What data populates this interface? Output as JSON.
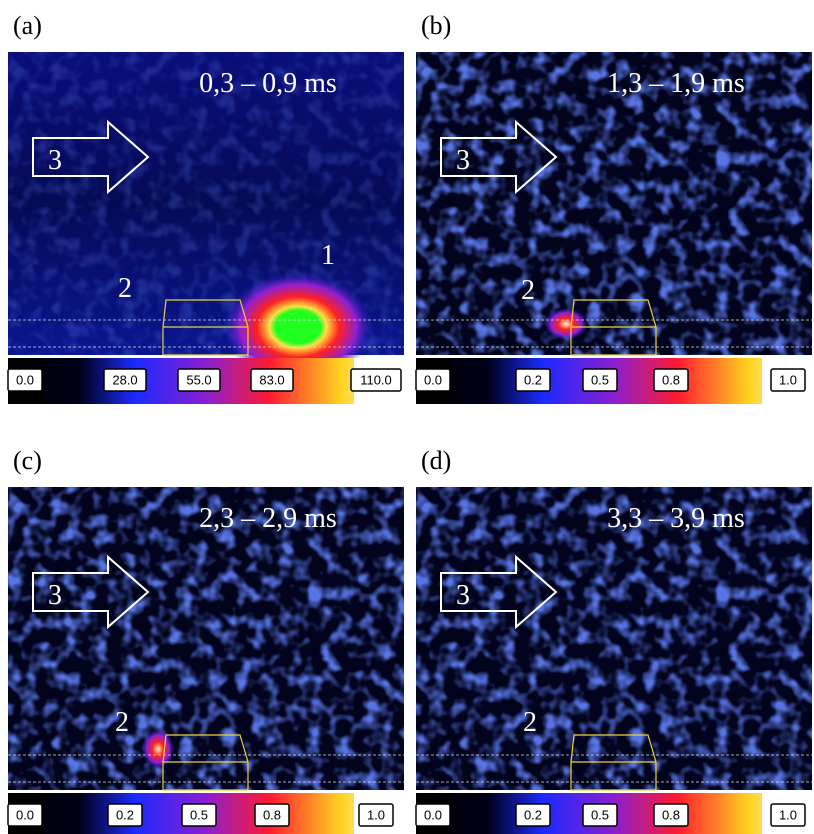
{
  "panels": [
    {
      "label": "(a)",
      "time": "0,3 – 0,9 ms",
      "arrow": "3",
      "marks": [
        "2",
        "1"
      ],
      "colorbar": [
        "0.0",
        "28.0",
        "55.0",
        "83.0",
        "110.0"
      ]
    },
    {
      "label": "(b)",
      "time": "1,3 – 1,9 ms",
      "arrow": "3",
      "marks": [
        "2"
      ],
      "colorbar": [
        "0.0",
        "0.2",
        "0.5",
        "0.8",
        "1.0"
      ]
    },
    {
      "label": "(c)",
      "time": "2,3 – 2,9 ms",
      "arrow": "3",
      "marks": [
        "2"
      ],
      "colorbar": [
        "0.0",
        "0.2",
        "0.5",
        "0.8",
        "1.0"
      ]
    },
    {
      "label": "(d)",
      "time": "3,3 – 3,9 ms",
      "arrow": "3",
      "marks": [
        "2"
      ],
      "colorbar": [
        "0.0",
        "0.2",
        "0.5",
        "0.8",
        "1.0"
      ]
    }
  ]
}
